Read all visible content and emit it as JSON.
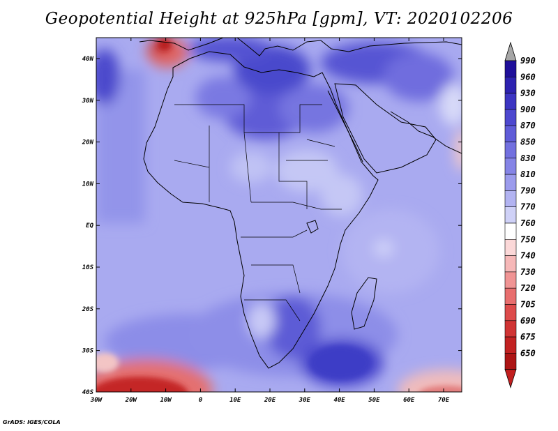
{
  "title": "Geopotential Height at 925hPa [gpm], VT: 2020102206",
  "credit": "GrADS: IGES/COLA",
  "lat_labels": [
    "40N",
    "30N",
    "20N",
    "10N",
    "EQ",
    "10S",
    "20S",
    "30S",
    "40S"
  ],
  "lon_labels": [
    "30W",
    "20W",
    "10W",
    "0",
    "10E",
    "20E",
    "30E",
    "40E",
    "50E",
    "60E",
    "70E"
  ],
  "legend": {
    "levels": [
      "990",
      "960",
      "930",
      "900",
      "870",
      "850",
      "830",
      "810",
      "790",
      "770",
      "760",
      "750",
      "740",
      "730",
      "720",
      "705",
      "690",
      "675",
      "650"
    ],
    "colors": [
      "#1f0f9a",
      "#2d22b0",
      "#3c35c2",
      "#4d48cf",
      "#5f5cd8",
      "#7270df",
      "#8584e6",
      "#9b9bec",
      "#b2b3f1",
      "#cfd1f7",
      "#ffffff",
      "#fbd8d8",
      "#f6b8b8",
      "#f09494",
      "#e86e6e",
      "#dd4b4b",
      "#d03434",
      "#c22222",
      "#ad1515"
    ],
    "top_arrow_color": "#a6a6a6",
    "bottom_arrow_color": "#c21f1f"
  }
}
